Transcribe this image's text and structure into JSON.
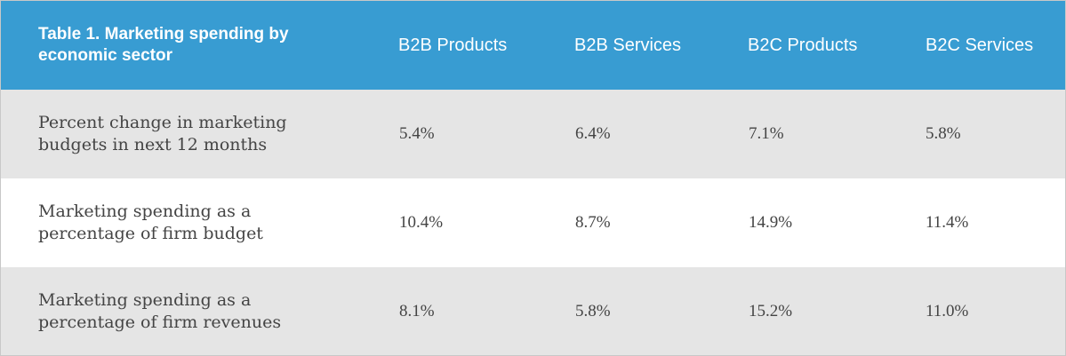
{
  "table": {
    "title": "Table 1. Marketing spending by economic sector",
    "columns": [
      "B2B Products",
      "B2B Services",
      "B2C Products",
      "B2C Services"
    ],
    "rows": [
      {
        "label": "Percent change in marketing budgets in next 12 months",
        "values": [
          "5.4%",
          "6.4%",
          "7.1%",
          "5.8%"
        ]
      },
      {
        "label": "Marketing spending as a percentage of firm budget",
        "values": [
          "10.4%",
          "8.7%",
          "14.9%",
          "11.4%"
        ]
      },
      {
        "label": "Marketing spending as a percentage of firm revenues",
        "values": [
          "8.1%",
          "5.8%",
          "15.2%",
          "11.0%"
        ]
      }
    ]
  },
  "colors": {
    "header_bg": "#389cd2",
    "header_text": "#ffffff",
    "row_shade": "#e5e5e5",
    "row_plain": "#ffffff",
    "body_text": "#444444"
  }
}
